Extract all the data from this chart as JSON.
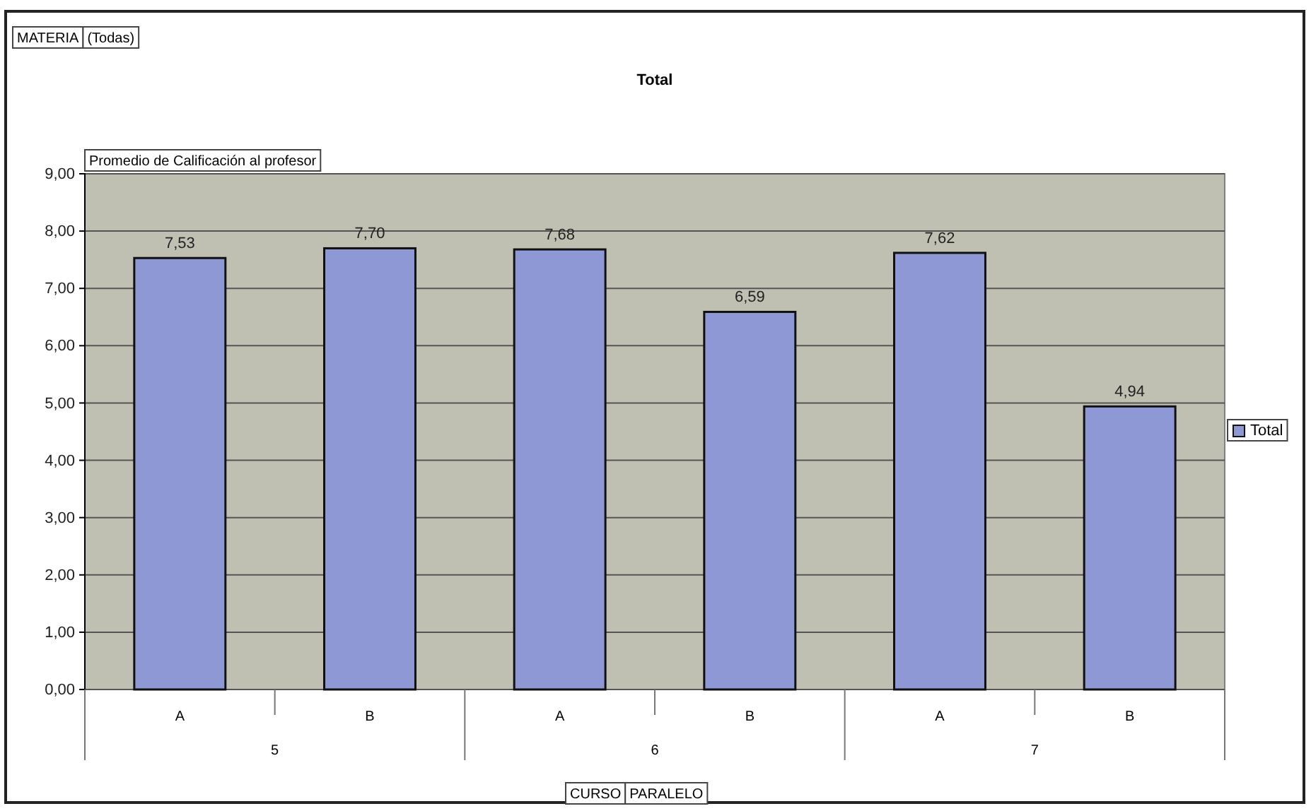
{
  "chart_data": {
    "type": "bar",
    "title": "Total",
    "ylabel": "Promedio de Calificación al profesor",
    "categories": [
      "A",
      "B",
      "A",
      "B",
      "A",
      "B"
    ],
    "series": [
      {
        "name": "Total",
        "color": "#8e98d4",
        "values": [
          7.53,
          7.7,
          7.68,
          6.59,
          7.62,
          4.94
        ]
      }
    ],
    "ylim": [
      0,
      9
    ],
    "yticks": [
      {
        "value": 0,
        "label": "0,00"
      },
      {
        "value": 1,
        "label": "1,00"
      },
      {
        "value": 2,
        "label": "2,00"
      },
      {
        "value": 3,
        "label": "3,00"
      },
      {
        "value": 4,
        "label": "4,00"
      },
      {
        "value": 5,
        "label": "5,00"
      },
      {
        "value": 6,
        "label": "6,00"
      },
      {
        "value": 7,
        "label": "7,00"
      },
      {
        "value": 8,
        "label": "8,00"
      },
      {
        "value": 9,
        "label": "9,00"
      }
    ],
    "value_labels": [
      "7,53",
      "7,70",
      "7,68",
      "6,59",
      "7,62",
      "4,94"
    ],
    "annotations": [
      "MATERIA",
      "(Todas)",
      "5",
      "6",
      "7",
      "CURSO",
      "PARALELO"
    ],
    "grid": "y",
    "legend": "right"
  }
}
